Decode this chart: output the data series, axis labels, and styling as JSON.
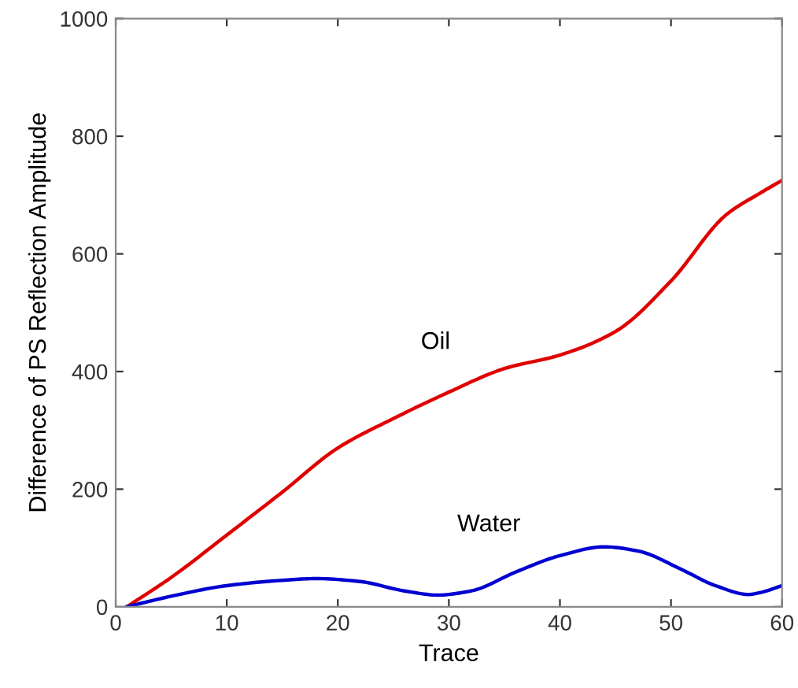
{
  "chart_data": {
    "type": "line",
    "xlabel": "Trace",
    "ylabel": "Difference of PS Reflection Amplitude",
    "xlim": [
      0,
      60
    ],
    "ylim": [
      0,
      1000
    ],
    "xticks": [
      0,
      10,
      20,
      30,
      40,
      50,
      60
    ],
    "yticks": [
      0,
      200,
      400,
      600,
      800,
      1000
    ],
    "grid": false,
    "marker": "none",
    "line_style": "solid",
    "series": [
      {
        "name": "Oil",
        "color": "#e00000",
        "x": [
          1,
          5,
          10,
          15,
          20,
          25,
          30,
          35,
          40,
          45,
          50,
          55,
          58,
          60
        ],
        "values": [
          0,
          50,
          122,
          195,
          270,
          320,
          365,
          405,
          428,
          468,
          554,
          667,
          703,
          725
        ]
      },
      {
        "name": "Water",
        "color": "#0000d0",
        "x": [
          1,
          5,
          10,
          15,
          18,
          22,
          26,
          29,
          32,
          36,
          40,
          44,
          47,
          51,
          54,
          57,
          58,
          60
        ],
        "values": [
          0,
          18,
          36,
          45,
          48,
          43,
          27,
          20,
          27,
          59,
          87,
          102,
          95,
          63,
          36,
          21,
          24,
          36
        ]
      }
    ]
  }
}
